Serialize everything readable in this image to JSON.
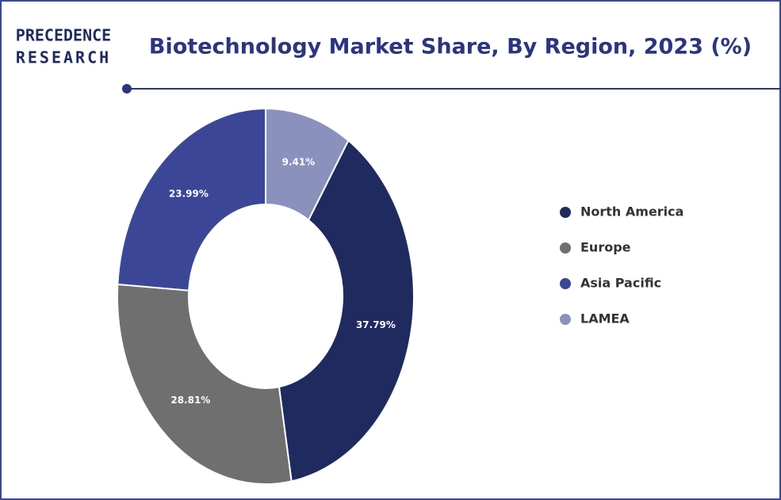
{
  "logo": {
    "line1": "PRECEDENCE",
    "line2": "RESEARCH"
  },
  "chart_data": {
    "type": "donut",
    "title": "Biotechnology Market Share, By Region, 2023 (%)",
    "categories": [
      "North America",
      "Europe",
      "Asia Pacific",
      "LAMEA"
    ],
    "values": [
      37.79,
      28.81,
      23.99,
      9.41
    ],
    "value_labels": [
      "37.79%",
      "28.81%",
      "23.99%",
      "9.41%"
    ],
    "colors": [
      "#1f2a5e",
      "#6f6f70",
      "#3b4796",
      "#8a91bd"
    ],
    "legend": "right"
  }
}
